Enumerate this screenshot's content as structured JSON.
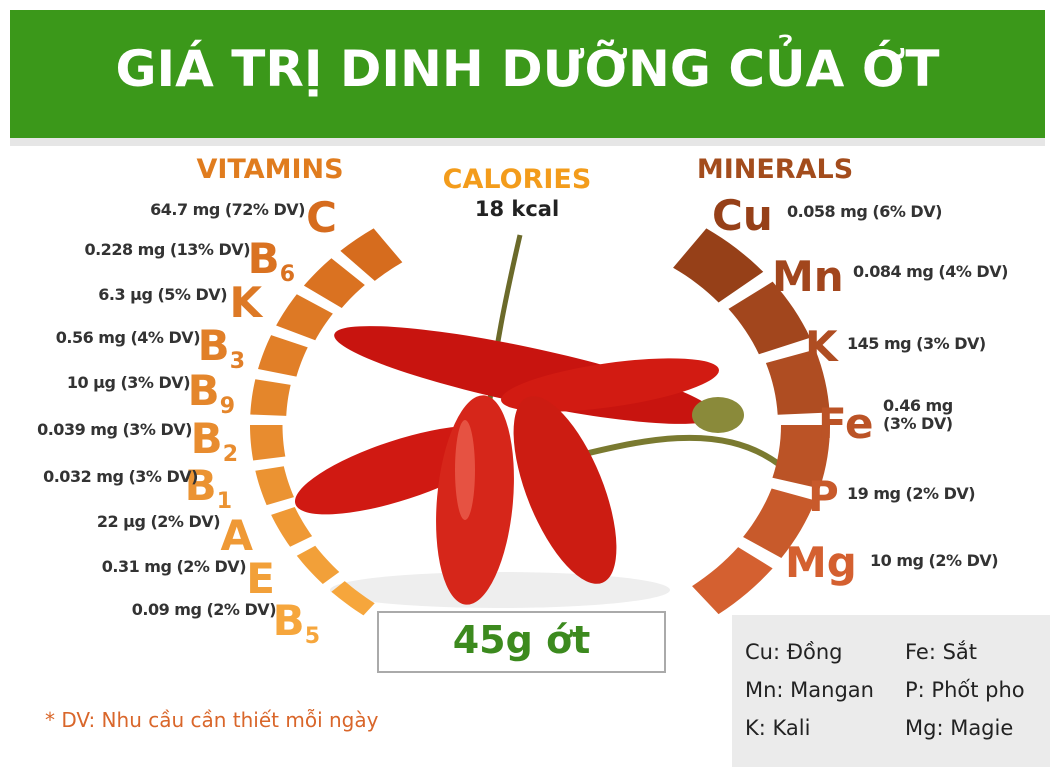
{
  "header": {
    "title": "GIÁ TRỊ DINH DƯỠNG CỦA ỚT"
  },
  "vitamins": {
    "title": "VITAMINS",
    "items": [
      {
        "symbol": "C",
        "amount": "64.7 mg (72% DV)"
      },
      {
        "symbol": "B",
        "subscript": "6",
        "amount": "0.228 mg (13% DV)"
      },
      {
        "symbol": "K",
        "amount": "6.3 µg (5% DV)"
      },
      {
        "symbol": "B",
        "subscript": "3",
        "amount": "0.56 mg (4% DV)"
      },
      {
        "symbol": "B",
        "subscript": "9",
        "amount": "10 µg (3% DV)"
      },
      {
        "symbol": "B",
        "subscript": "2",
        "amount": "0.039 mg (3% DV)"
      },
      {
        "symbol": "B",
        "subscript": "1",
        "amount": "0.032 mg (3% DV)"
      },
      {
        "symbol": "A",
        "amount": "22 µg (2% DV)"
      },
      {
        "symbol": "E",
        "amount": "0.31 mg (2% DV)"
      },
      {
        "symbol": "B",
        "subscript": "5",
        "amount": "0.09 mg (2% DV)"
      }
    ]
  },
  "calories": {
    "title": "CALORIES",
    "value": "18 kcal"
  },
  "minerals": {
    "title": "MINERALS",
    "items": [
      {
        "symbol": "Cu",
        "amount": "0.058 mg (6% DV)"
      },
      {
        "symbol": "Mn",
        "amount": "0.084 mg (4% DV)"
      },
      {
        "symbol": "K",
        "amount": "145 mg (3% DV)"
      },
      {
        "symbol": "Fe",
        "amount": "0.46 mg (3% DV)"
      },
      {
        "symbol": "P",
        "amount": "19 mg (2% DV)"
      },
      {
        "symbol": "Mg",
        "amount": "10 mg (2% DV)"
      }
    ]
  },
  "serving": "45g ớt",
  "footnote": "* DV: Nhu cầu cần thiết mỗi ngày",
  "legend": [
    "Cu: Đồng",
    "Fe: Sắt",
    "Mn: Mangan",
    "P: Phốt pho",
    "K: Kali",
    "Mg: Magie"
  ]
}
